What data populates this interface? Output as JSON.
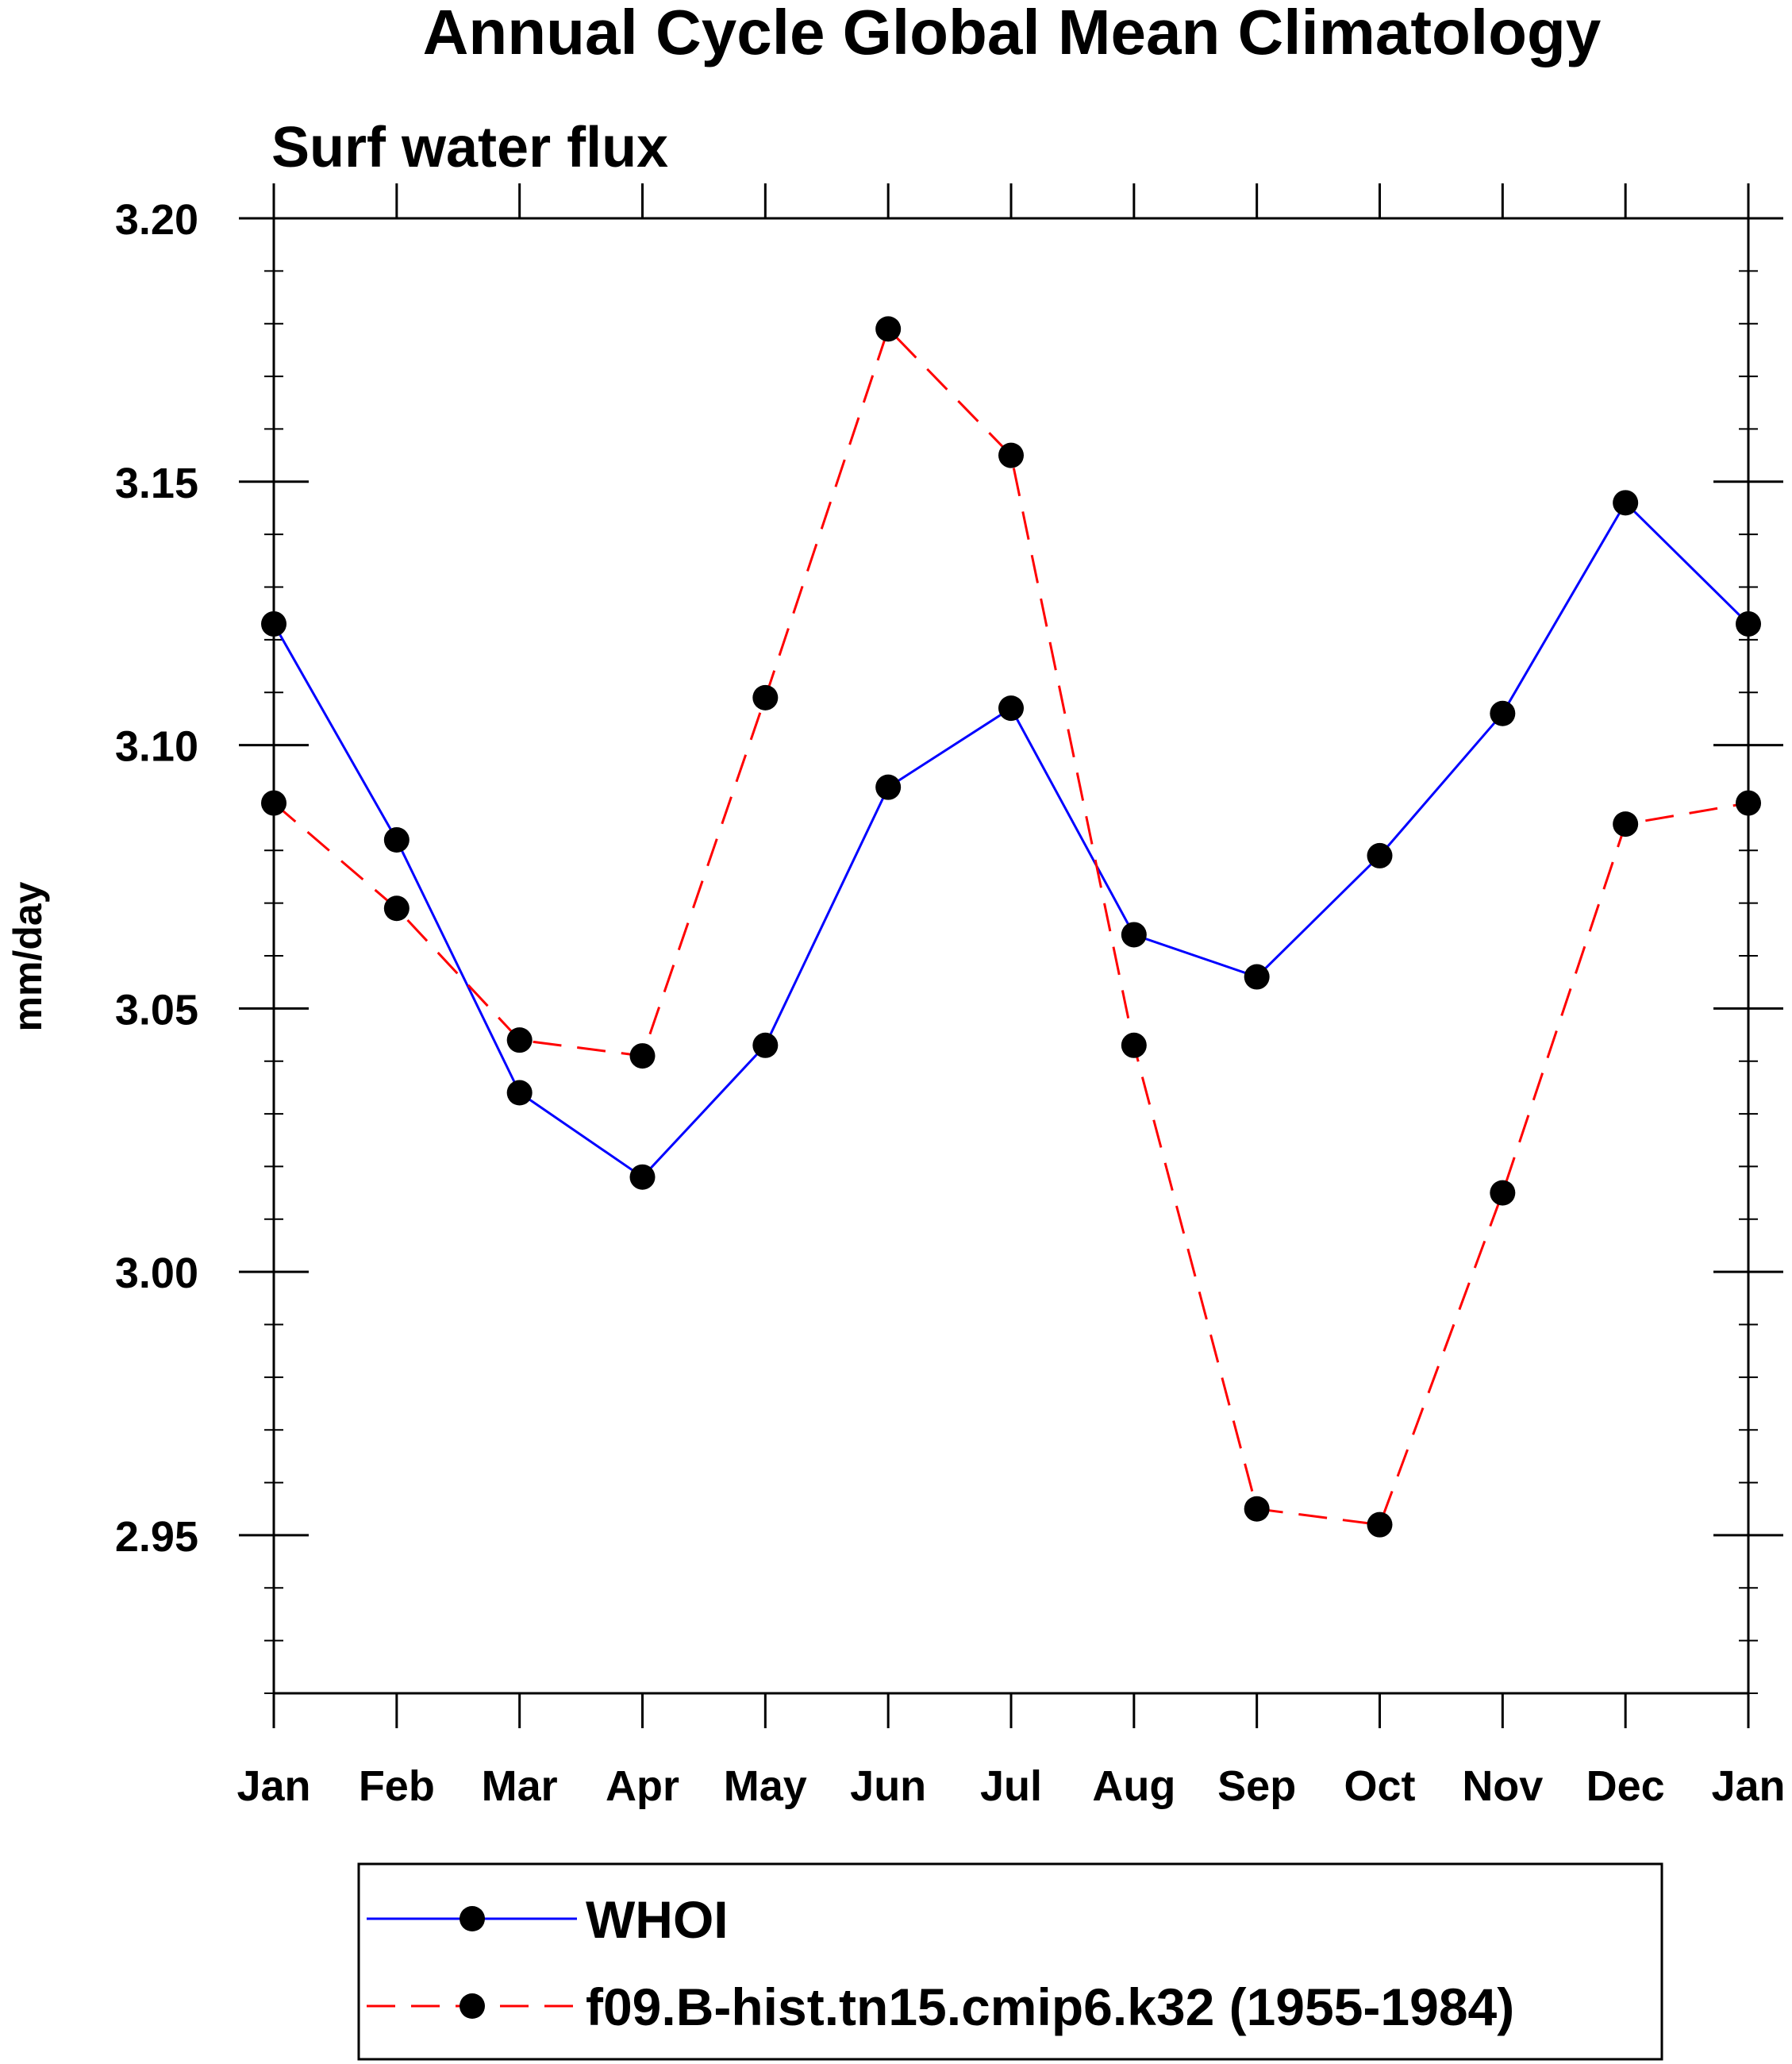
{
  "chart_data": {
    "type": "line",
    "title": "Annual Cycle Global Mean Climatology",
    "subtitle": "Surf water flux",
    "xlabel": "",
    "ylabel": "mm/day",
    "categories": [
      "Jan",
      "Feb",
      "Mar",
      "Apr",
      "May",
      "Jun",
      "Jul",
      "Aug",
      "Sep",
      "Oct",
      "Nov",
      "Dec",
      "Jan"
    ],
    "ylim": [
      2.92,
      3.2
    ],
    "yticks": [
      "2.95",
      "3.00",
      "3.05",
      "3.10",
      "3.15",
      "3.20"
    ],
    "ytick_values": [
      2.95,
      3.0,
      3.05,
      3.1,
      3.15,
      3.2
    ],
    "grid": false,
    "legend_position": "bottom",
    "series": [
      {
        "name": "WHOI",
        "color": "#0000ff",
        "line_style": "solid",
        "marker": "filled-circle",
        "values": [
          3.123,
          3.082,
          3.034,
          3.018,
          3.043,
          3.092,
          3.107,
          3.064,
          3.056,
          3.079,
          3.106,
          3.146,
          3.123
        ]
      },
      {
        "name": "f09.B-hist.tn15.cmip6.k32 (1955-1984)",
        "color": "#ff0000",
        "line_style": "dashed",
        "marker": "filled-circle",
        "values": [
          3.089,
          3.069,
          3.044,
          3.041,
          3.109,
          3.179,
          3.155,
          3.043,
          2.955,
          2.952,
          3.015,
          3.085,
          3.089
        ]
      }
    ]
  }
}
